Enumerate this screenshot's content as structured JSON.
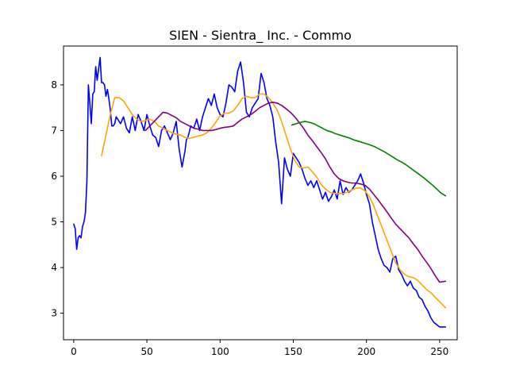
{
  "chart_data": {
    "type": "line",
    "title": "SIEN - Sientra_ Inc. - Commo",
    "xlabel": "",
    "ylabel": "",
    "xlim": [
      -7,
      262
    ],
    "ylim": [
      2.42,
      8.85
    ],
    "xticks": [
      0,
      50,
      100,
      150,
      200,
      250
    ],
    "yticks": [
      3,
      4,
      5,
      6,
      7,
      8
    ],
    "grid": false,
    "legend": "none",
    "series": [
      {
        "color": "#0000ff",
        "x": [
          0,
          1,
          2,
          3,
          4,
          5,
          6,
          7,
          8,
          9,
          10,
          11,
          12,
          13,
          14,
          15,
          16,
          17,
          18,
          19,
          20,
          21,
          22,
          23,
          24,
          25,
          26,
          27,
          28,
          29,
          30,
          32,
          34,
          36,
          38,
          40,
          42,
          44,
          46,
          48,
          50,
          52,
          54,
          56,
          58,
          60,
          62,
          64,
          66,
          68,
          70,
          72,
          74,
          76,
          77,
          78,
          80,
          82,
          84,
          86,
          88,
          90,
          92,
          94,
          96,
          98,
          100,
          102,
          104,
          106,
          108,
          110,
          112,
          114,
          116,
          118,
          120,
          122,
          124,
          126,
          128,
          130,
          132,
          134,
          136,
          138,
          140,
          142,
          144,
          146,
          148,
          150,
          152,
          154,
          156,
          158,
          160,
          162,
          164,
          166,
          168,
          170,
          172,
          174,
          176,
          178,
          180,
          182,
          184,
          186,
          188,
          190,
          192,
          194,
          196,
          198,
          200,
          202,
          204,
          206,
          208,
          210,
          212,
          214,
          216,
          218,
          220,
          222,
          224,
          226,
          228,
          230,
          232,
          234,
          236,
          238,
          240,
          242,
          244,
          246,
          248,
          250,
          252,
          254
        ],
        "y": [
          4.95,
          4.85,
          4.4,
          4.65,
          4.7,
          4.65,
          4.9,
          5.0,
          5.2,
          5.9,
          8.0,
          7.6,
          7.15,
          7.8,
          7.85,
          8.4,
          8.1,
          8.35,
          8.6,
          8.05,
          8.05,
          8.0,
          7.75,
          7.9,
          7.7,
          7.45,
          7.1,
          7.1,
          7.15,
          7.3,
          7.25,
          7.15,
          7.3,
          7.05,
          6.95,
          7.3,
          7.0,
          7.35,
          7.2,
          7.0,
          7.35,
          7.1,
          6.9,
          6.85,
          6.65,
          7.0,
          7.1,
          6.95,
          6.8,
          6.95,
          7.2,
          6.6,
          6.2,
          6.55,
          6.8,
          6.85,
          7.1,
          7.05,
          7.25,
          7.0,
          7.3,
          7.5,
          7.7,
          7.55,
          7.8,
          7.5,
          7.35,
          7.3,
          7.6,
          8.0,
          7.95,
          7.85,
          8.3,
          8.5,
          8.05,
          7.4,
          7.3,
          7.5,
          7.6,
          7.7,
          8.25,
          8.05,
          7.7,
          7.55,
          7.3,
          6.75,
          6.3,
          5.4,
          6.4,
          6.15,
          6.0,
          6.5,
          6.4,
          6.3,
          6.15,
          5.95,
          5.8,
          5.9,
          5.75,
          5.9,
          5.7,
          5.5,
          5.65,
          5.45,
          5.55,
          5.7,
          5.5,
          5.9,
          5.6,
          5.75,
          5.65,
          5.7,
          5.8,
          5.9,
          6.05,
          5.85,
          5.6,
          5.4,
          5.0,
          4.7,
          4.4,
          4.2,
          4.05,
          4.0,
          3.9,
          4.2,
          4.25,
          3.95,
          3.85,
          3.7,
          3.6,
          3.7,
          3.55,
          3.5,
          3.35,
          3.3,
          3.15,
          3.05,
          2.9,
          2.8,
          2.75,
          2.7,
          2.7,
          2.7
        ]
      },
      {
        "color": "#ffa500",
        "x": [
          19,
          22,
          25,
          28,
          31,
          34,
          37,
          40,
          43,
          46,
          49,
          52,
          55,
          58,
          61,
          64,
          67,
          70,
          73,
          76,
          79,
          82,
          85,
          88,
          91,
          94,
          97,
          100,
          103,
          106,
          109,
          112,
          115,
          118,
          121,
          124,
          127,
          130,
          133,
          136,
          139,
          142,
          145,
          148,
          151,
          154,
          157,
          160,
          163,
          166,
          169,
          172,
          175,
          178,
          181,
          184,
          187,
          190,
          193,
          196,
          199,
          202,
          205,
          208,
          211,
          214,
          217,
          220,
          223,
          226,
          229,
          232,
          235,
          238,
          241,
          244,
          247,
          250,
          254
        ],
        "y": [
          6.45,
          6.9,
          7.35,
          7.72,
          7.72,
          7.65,
          7.5,
          7.35,
          7.25,
          7.2,
          7.22,
          7.25,
          7.2,
          7.1,
          7.05,
          7.0,
          6.95,
          6.92,
          6.9,
          6.85,
          6.83,
          6.85,
          6.88,
          6.9,
          6.95,
          7.05,
          7.18,
          7.32,
          7.38,
          7.38,
          7.43,
          7.55,
          7.7,
          7.75,
          7.72,
          7.72,
          7.8,
          7.8,
          7.72,
          7.6,
          7.45,
          7.2,
          6.9,
          6.6,
          6.35,
          6.2,
          6.18,
          6.2,
          6.1,
          5.98,
          5.82,
          5.72,
          5.65,
          5.62,
          5.62,
          5.62,
          5.65,
          5.7,
          5.74,
          5.74,
          5.68,
          5.55,
          5.35,
          5.1,
          4.85,
          4.6,
          4.35,
          4.1,
          3.95,
          3.85,
          3.8,
          3.78,
          3.72,
          3.62,
          3.52,
          3.45,
          3.35,
          3.25,
          3.12
        ]
      },
      {
        "color": "#800080",
        "x": [
          49,
          52,
          55,
          58,
          61,
          64,
          67,
          70,
          73,
          76,
          79,
          82,
          85,
          88,
          91,
          94,
          97,
          100,
          103,
          106,
          109,
          112,
          115,
          118,
          121,
          124,
          127,
          130,
          133,
          136,
          139,
          142,
          145,
          148,
          151,
          154,
          157,
          160,
          163,
          166,
          169,
          172,
          175,
          178,
          181,
          184,
          187,
          190,
          193,
          196,
          199,
          202,
          205,
          208,
          211,
          214,
          217,
          220,
          223,
          226,
          229,
          232,
          235,
          238,
          241,
          244,
          247,
          250,
          254
        ],
        "y": [
          7.0,
          7.1,
          7.2,
          7.3,
          7.4,
          7.38,
          7.33,
          7.28,
          7.2,
          7.15,
          7.1,
          7.05,
          7.03,
          7.0,
          7.0,
          7.0,
          7.02,
          7.05,
          7.07,
          7.08,
          7.1,
          7.18,
          7.25,
          7.3,
          7.35,
          7.42,
          7.5,
          7.55,
          7.6,
          7.62,
          7.6,
          7.55,
          7.48,
          7.4,
          7.3,
          7.18,
          7.05,
          6.9,
          6.78,
          6.65,
          6.52,
          6.38,
          6.2,
          6.05,
          5.95,
          5.9,
          5.87,
          5.85,
          5.85,
          5.83,
          5.8,
          5.72,
          5.6,
          5.48,
          5.35,
          5.22,
          5.08,
          4.95,
          4.85,
          4.75,
          4.65,
          4.52,
          4.4,
          4.25,
          4.12,
          3.98,
          3.82,
          3.68,
          3.7
        ]
      },
      {
        "color": "#008000",
        "x": [
          149,
          152,
          155,
          158,
          161,
          164,
          167,
          170,
          173,
          176,
          179,
          182,
          185,
          188,
          191,
          194,
          197,
          200,
          203,
          206,
          209,
          212,
          215,
          218,
          221,
          224,
          227,
          230,
          233,
          236,
          239,
          242,
          245,
          248,
          251,
          254
        ],
        "y": [
          7.12,
          7.15,
          7.18,
          7.2,
          7.18,
          7.15,
          7.1,
          7.05,
          7.0,
          6.97,
          6.93,
          6.9,
          6.87,
          6.84,
          6.8,
          6.77,
          6.74,
          6.71,
          6.68,
          6.64,
          6.59,
          6.54,
          6.48,
          6.42,
          6.36,
          6.31,
          6.25,
          6.18,
          6.11,
          6.04,
          5.97,
          5.89,
          5.81,
          5.72,
          5.63,
          5.57
        ]
      }
    ]
  }
}
